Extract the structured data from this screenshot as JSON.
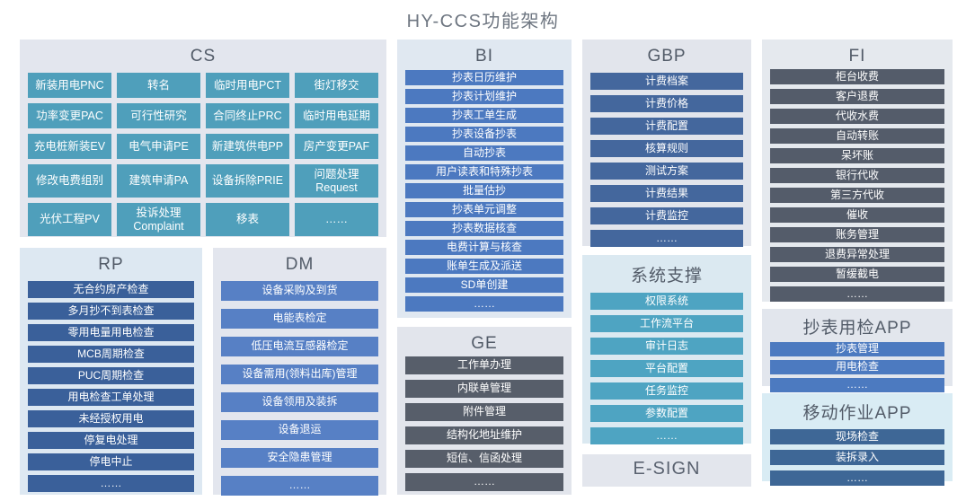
{
  "title": "HY-CCS功能架构",
  "colors": {
    "page_bg": "#ffffff",
    "title_text": "#6e7681",
    "panel_title_text": "#525b68",
    "cell_text": "#ffffff"
  },
  "panels": [
    {
      "id": "cs",
      "title": "CS",
      "bg": "#e3e6ee",
      "cell_bg": "#4f9fbb",
      "items": [
        "新装用电PNC",
        "转名",
        "临时用电PCT",
        "街灯移交",
        "功率变更PAC",
        "可行性研究",
        "合同终止PRC",
        "临时用电延期",
        "充电桩新装EV",
        "电气申请PE",
        "新建筑供电PP",
        "房产变更PAF",
        "修改电费组别",
        "建筑申请PA",
        "设备拆除PRIE",
        "问题处理 Request",
        "光伏工程PV",
        "投诉处理 Complaint",
        "移表",
        "……"
      ]
    },
    {
      "id": "rp",
      "title": "RP",
      "bg": "#dde8f2",
      "cell_bg": "#3a609a",
      "items": [
        "无合约房产检查",
        "多月抄不到表检查",
        "零用电量用电检查",
        "MCB周期检查",
        "PUC周期检查",
        "用电检查工单处理",
        "未经授权用电",
        "停复电处理",
        "停电中止",
        "……"
      ]
    },
    {
      "id": "dm",
      "title": "DM",
      "bg": "#e3e6ee",
      "cell_bg": "#5780c5",
      "items": [
        "设备采购及到货",
        "电能表检定",
        "低压电流互感器检定",
        "设备需用(领料出库)管理",
        "设备领用及装拆",
        "设备退运",
        "安全隐患管理",
        "……"
      ]
    },
    {
      "id": "bi",
      "title": "BI",
      "bg": "#e0e8f1",
      "cell_bg": "#4c79c0",
      "items": [
        "抄表日历维护",
        "抄表计划维护",
        "抄表工单生成",
        "抄表设备抄表",
        "自动抄表",
        "用户读表和特殊抄表",
        "批量估抄",
        "抄表单元调整",
        "抄表数据核查",
        "电费计算与核查",
        "账单生成及派送",
        "SD单创建",
        "……"
      ]
    },
    {
      "id": "ge",
      "title": "GE",
      "bg": "#e2e5ec",
      "cell_bg": "#575e6a",
      "items": [
        "工作单办理",
        "内联单管理",
        "附件管理",
        "结构化地址维护",
        "短信、信函处理",
        "……"
      ]
    },
    {
      "id": "gbp",
      "title": "GBP",
      "bg": "#e2e5ec",
      "cell_bg": "#44679d",
      "items": [
        "计费档案",
        "计费价格",
        "计费配置",
        "核算规则",
        "测试方案",
        "计费结果",
        "计费监控",
        "……"
      ]
    },
    {
      "id": "support",
      "title": "系统支撑",
      "bg": "#dbe9f1",
      "cell_bg": "#4ea4c2",
      "items": [
        "权限系统",
        "工作流平台",
        "审计日志",
        "平台配置",
        "任务监控",
        "参数配置",
        "……"
      ]
    },
    {
      "id": "esign",
      "title": "E-SIGN",
      "bg": "#e3e6ed",
      "cell_bg": "#e3e6ed",
      "items": []
    },
    {
      "id": "fi",
      "title": "FI",
      "bg": "#e5e9ee",
      "cell_bg": "#545c6a",
      "items": [
        "柜台收费",
        "客户退费",
        "代收水费",
        "自动转账",
        "呆坏账",
        "银行代收",
        "第三方代收",
        "催收",
        "账务管理",
        "退费异常处理",
        "暂缓截电",
        "……"
      ]
    },
    {
      "id": "meterapp",
      "title": "抄表用检APP",
      "bg": "#e2e6ed",
      "cell_bg": "#4c7ac0",
      "items": [
        "抄表管理",
        "用电检查",
        "……"
      ]
    },
    {
      "id": "mobileapp",
      "title": "移动作业APP",
      "bg": "#d9ecf4",
      "cell_bg": "#3e6796",
      "items": [
        "现场检查",
        "装拆录入",
        "……"
      ]
    }
  ]
}
